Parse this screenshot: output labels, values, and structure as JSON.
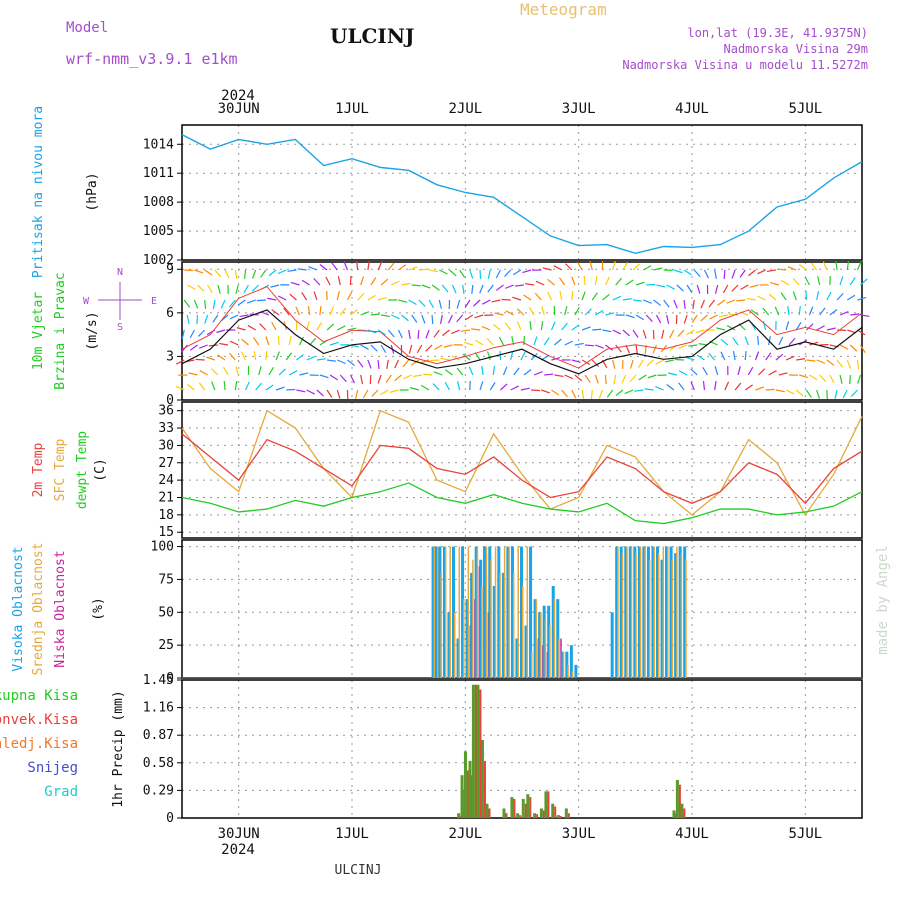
{
  "header": {
    "model_label": "Model",
    "model_name": "wrf-nmm_v3.9.1 e1km",
    "title": "ULCINJ",
    "meteogram": "Meteogram",
    "lonlat": "lon,lat (19.3E, 41.9375N)",
    "altitude": "Nadmorska Visina 29m",
    "model_altitude": "Nadmorska Visina u modelu 11.5272m",
    "year_top": "2024",
    "year_bottom": "2024",
    "footer_station": "ULCINJ",
    "watermark": "made by Angel"
  },
  "colors": {
    "pressure": "#1aa3e8",
    "temp2m": "#e8423a",
    "sfc": "#e6a93a",
    "dewpt": "#22cc22",
    "high_cloud": "#1aa3e8",
    "mid_cloud": "#e6a93a",
    "low_cloud": "#cc2299",
    "total_rain": "#5a9a2a",
    "conv_rain": "#e8423a",
    "frozen_rain": "#f07a2a",
    "snow": "#4a4acc",
    "grad": "#22cccc",
    "wind_speed": "#111111",
    "wind_gust": "#e8423a",
    "compass": "#a64ccc"
  },
  "chart_data": [
    {
      "type": "line",
      "panel": "pressure",
      "ylabel_name": "Pritisak na nivou mora",
      "ylabel_unit": "(hPa)",
      "yticks": [
        1002,
        1005,
        1008,
        1011,
        1014
      ],
      "ylim": [
        1002,
        1016
      ],
      "x_days": [
        0,
        0.25,
        0.5,
        0.75,
        1,
        1.25,
        1.5,
        1.75,
        2,
        2.25,
        2.5,
        2.75,
        3,
        3.25,
        3.5,
        3.75,
        4,
        4.25,
        4.5,
        4.75,
        5,
        5.25,
        5.5,
        5.75,
        6
      ],
      "values": [
        1015,
        1013.5,
        1014.5,
        1014,
        1014.5,
        1011.8,
        1012.5,
        1011.6,
        1011.3,
        1009.8,
        1009,
        1008.5,
        1006.5,
        1004.5,
        1003.5,
        1003.6,
        1002.7,
        1003.4,
        1003.3,
        1003.6,
        1005,
        1007.5,
        1008.3,
        1010.5,
        1012.2
      ],
      "grid": true
    },
    {
      "type": "line",
      "panel": "wind",
      "ylabel_name": "10m Vjetar",
      "ylabel_name2": "Brzina i Pravac",
      "ylabel_unit": "(m/s)",
      "compass_labels": [
        "N",
        "E",
        "W",
        "S"
      ],
      "yticks": [
        0,
        3,
        6,
        9
      ],
      "ylim": [
        0,
        9.5
      ],
      "x_days": [
        0,
        0.25,
        0.5,
        0.75,
        1,
        1.25,
        1.5,
        1.75,
        2,
        2.25,
        2.5,
        2.75,
        3,
        3.25,
        3.5,
        3.75,
        4,
        4.25,
        4.5,
        4.75,
        5,
        5.25,
        5.5,
        5.75,
        6
      ],
      "series": [
        {
          "key": "speed",
          "values": [
            2.5,
            3.5,
            5.5,
            6.2,
            4.5,
            3.2,
            3.8,
            4.0,
            2.8,
            2.2,
            2.5,
            3.0,
            3.5,
            2.5,
            1.8,
            2.8,
            3.2,
            2.8,
            3.0,
            4.5,
            5.5,
            3.5,
            4.0,
            3.5,
            5.0
          ]
        },
        {
          "key": "gust",
          "values": [
            3.5,
            4.5,
            7.0,
            7.8,
            5.5,
            4.0,
            4.8,
            4.7,
            3.0,
            2.5,
            3.0,
            3.6,
            4.0,
            3.0,
            2.2,
            3.5,
            3.8,
            3.5,
            4.0,
            5.5,
            6.2,
            4.5,
            5.0,
            4.5,
            6.0
          ]
        }
      ],
      "grid": true
    },
    {
      "type": "line",
      "panel": "temperature",
      "ylabel_name": "2m Temp",
      "ylabel_name2": "SFC Temp",
      "ylabel_name3": "dewpt Temp",
      "ylabel_unit": "(C)",
      "yticks": [
        15,
        18,
        21,
        24,
        27,
        30,
        33,
        36
      ],
      "ylim": [
        14,
        37.5
      ],
      "x_days": [
        0,
        0.25,
        0.5,
        0.75,
        1,
        1.25,
        1.5,
        1.75,
        2,
        2.25,
        2.5,
        2.75,
        3,
        3.25,
        3.5,
        3.75,
        4,
        4.25,
        4.5,
        4.75,
        5,
        5.25,
        5.5,
        5.75,
        6
      ],
      "series": [
        {
          "key": "temp2m",
          "values": [
            32,
            28,
            24,
            31,
            29,
            26,
            23,
            30,
            29.5,
            26,
            25,
            28,
            24,
            21,
            22,
            28,
            26,
            22,
            20,
            22,
            27,
            25,
            20,
            26,
            29
          ]
        },
        {
          "key": "sfc",
          "values": [
            33,
            26,
            22,
            36,
            33,
            26,
            21,
            36,
            34,
            24,
            22,
            32,
            25,
            19,
            21,
            30,
            28,
            22,
            18,
            22,
            31,
            27,
            18,
            25,
            35
          ]
        },
        {
          "key": "dewpt",
          "values": [
            21,
            20,
            18.5,
            19,
            20.5,
            19.5,
            21,
            22,
            23.5,
            21,
            20,
            21.5,
            20,
            19,
            18.5,
            20,
            17,
            16.5,
            17.5,
            19,
            19,
            18,
            18.5,
            19.5,
            22
          ]
        }
      ],
      "grid": true
    },
    {
      "type": "bar",
      "panel": "cloud",
      "ylabel_name": "Visoka Oblacnost",
      "ylabel_name2": "Srednja Oblacnost",
      "ylabel_name3": "Niska Oblacnost",
      "ylabel_unit": "(%)",
      "yticks": [
        0,
        25,
        50,
        75,
        100
      ],
      "ylim": [
        0,
        105
      ],
      "x_days": [
        2.22,
        2.25,
        2.28,
        2.32,
        2.36,
        2.4,
        2.44,
        2.48,
        2.52,
        2.56,
        2.6,
        2.64,
        2.68,
        2.72,
        2.76,
        2.8,
        2.84,
        2.88,
        2.92,
        2.96,
        3.0,
        3.04,
        3.08,
        3.12,
        3.16,
        3.2,
        3.24,
        3.28,
        3.32,
        3.36,
        3.4,
        3.44,
        3.48,
        3.52,
        3.56,
        3.6,
        3.64,
        3.68,
        3.72,
        3.76,
        3.8,
        3.84,
        3.88,
        3.92,
        3.96,
        4.0,
        4.04,
        4.08,
        4.12,
        4.16,
        4.2,
        4.24,
        4.28,
        4.32,
        4.36,
        4.4,
        4.44,
        4.48
      ],
      "series": [
        {
          "key": "high",
          "values": [
            100,
            100,
            100,
            100,
            50,
            100,
            30,
            100,
            60,
            80,
            100,
            90,
            100,
            100,
            70,
            100,
            80,
            100,
            100,
            30,
            100,
            40,
            100,
            60,
            50,
            55,
            55,
            70,
            60,
            20,
            20,
            25,
            10,
            0,
            0,
            0,
            0,
            0,
            0,
            0,
            50,
            100,
            100,
            100,
            100,
            100,
            100,
            100,
            100,
            100,
            100,
            90,
            100,
            100,
            95,
            100,
            100,
            0
          ]
        },
        {
          "key": "mid",
          "values": [
            100,
            100,
            80,
            100,
            100,
            50,
            100,
            60,
            100,
            90,
            100,
            70,
            100,
            90,
            100,
            80,
            100,
            100,
            80,
            100,
            70,
            100,
            20,
            60,
            50,
            45,
            40,
            60,
            30,
            20,
            10,
            5,
            0,
            0,
            0,
            0,
            0,
            0,
            0,
            0,
            0,
            100,
            95,
            100,
            100,
            95,
            100,
            100,
            90,
            100,
            95,
            100,
            100,
            90,
            100,
            95,
            90,
            0
          ]
        },
        {
          "key": "low",
          "values": [
            0,
            0,
            0,
            0,
            0,
            0,
            0,
            0,
            40,
            60,
            85,
            100,
            50,
            0,
            0,
            0,
            0,
            0,
            0,
            0,
            0,
            0,
            0,
            30,
            25,
            20,
            0,
            0,
            30,
            0,
            0,
            0,
            0,
            0,
            0,
            0,
            0,
            0,
            0,
            0,
            0,
            0,
            0,
            0,
            0,
            0,
            0,
            0,
            0,
            0,
            0,
            0,
            0,
            0,
            0,
            0,
            0,
            0
          ]
        }
      ],
      "grid": true
    },
    {
      "type": "bar",
      "panel": "precip",
      "legend": [
        "Ukupna Kisa",
        "Konvek.Kisa",
        "Zaledj.Kisa",
        "Snijeg",
        "Grad"
      ],
      "ylabel_unit": "1hr Precip (mm)",
      "yticks": [
        0,
        0.29,
        0.58,
        0.87,
        1.16,
        1.45
      ],
      "ylim": [
        0,
        1.45
      ],
      "x_days": [
        2.45,
        2.48,
        2.51,
        2.55,
        2.58,
        2.62,
        2.66,
        2.7,
        2.85,
        2.92,
        2.97,
        3.02,
        3.06,
        3.12,
        3.18,
        3.22,
        3.28,
        3.33,
        3.4,
        4.35,
        4.38,
        4.42
      ],
      "series": [
        {
          "key": "total",
          "values": [
            0.05,
            0.45,
            0.7,
            0.6,
            1.4,
            1.4,
            0.82,
            0.15,
            0.1,
            0.22,
            0.05,
            0.2,
            0.25,
            0.05,
            0.1,
            0.28,
            0.15,
            0.03,
            0.1,
            0.08,
            0.4,
            0.15
          ]
        },
        {
          "key": "conv",
          "values": [
            0.02,
            0.3,
            0.5,
            0.45,
            1.4,
            1.35,
            0.6,
            0.1,
            0.05,
            0.2,
            0.03,
            0.15,
            0.22,
            0.04,
            0.08,
            0.28,
            0.12,
            0.02,
            0.05,
            0.05,
            0.35,
            0.1
          ]
        }
      ],
      "grid": true
    }
  ],
  "x_axis": {
    "day_labels": [
      "30JUN",
      "1JUL",
      "2JUL",
      "3JUL",
      "4JUL",
      "5JUL"
    ],
    "day_positions": [
      0.5,
      1.5,
      2.5,
      3.5,
      4.5,
      5.5
    ],
    "xlim": [
      0,
      6
    ]
  }
}
